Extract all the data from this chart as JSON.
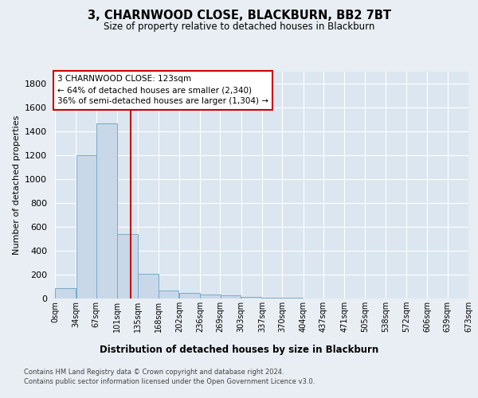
{
  "title": "3, CHARNWOOD CLOSE, BLACKBURN, BB2 7BT",
  "subtitle": "Size of property relative to detached houses in Blackburn",
  "xlabel": "Distribution of detached houses by size in Blackburn",
  "ylabel": "Number of detached properties",
  "bin_labels": [
    "0sqm",
    "34sqm",
    "67sqm",
    "101sqm",
    "135sqm",
    "168sqm",
    "202sqm",
    "236sqm",
    "269sqm",
    "303sqm",
    "337sqm",
    "370sqm",
    "404sqm",
    "437sqm",
    "471sqm",
    "505sqm",
    "538sqm",
    "572sqm",
    "606sqm",
    "639sqm",
    "673sqm"
  ],
  "bin_edges": [
    0,
    34,
    67,
    101,
    135,
    168,
    202,
    236,
    269,
    303,
    337,
    370,
    404,
    437,
    471,
    505,
    538,
    572,
    606,
    639,
    673
  ],
  "bar_heights": [
    90,
    1200,
    1470,
    540,
    205,
    65,
    45,
    35,
    28,
    15,
    5,
    5,
    0,
    0,
    0,
    0,
    0,
    0,
    0,
    0
  ],
  "bar_color": "#c8d8e8",
  "bar_edge_color": "#7aaac8",
  "property_size": 123,
  "vline_color": "#cc0000",
  "annotation_text": "3 CHARNWOOD CLOSE: 123sqm\n← 64% of detached houses are smaller (2,340)\n36% of semi-detached houses are larger (1,304) →",
  "annotation_box_color": "#cc0000",
  "ylim": [
    0,
    1900
  ],
  "yticks": [
    0,
    200,
    400,
    600,
    800,
    1000,
    1200,
    1400,
    1600,
    1800
  ],
  "bg_color": "#e8eef4",
  "plot_bg_color": "#dce6f0",
  "grid_color": "#ffffff",
  "footer_line1": "Contains HM Land Registry data © Crown copyright and database right 2024.",
  "footer_line2": "Contains public sector information licensed under the Open Government Licence v3.0."
}
